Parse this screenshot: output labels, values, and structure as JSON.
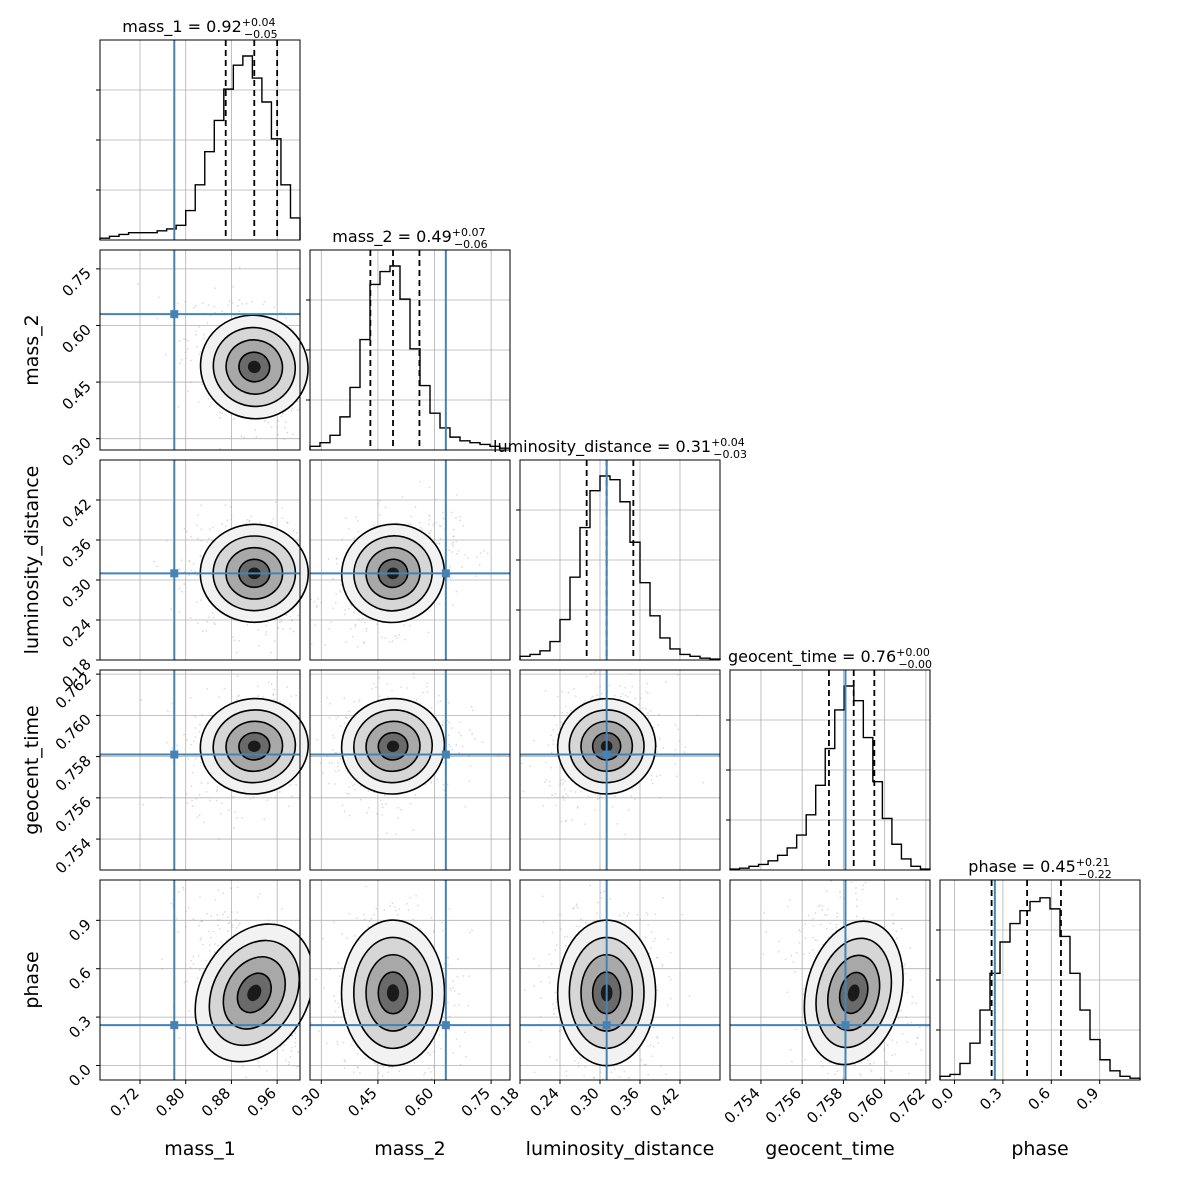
{
  "chart_data": {
    "type": "corner",
    "params": [
      "mass_1",
      "mass_2",
      "luminosity_distance",
      "geocent_time",
      "phase"
    ],
    "axis_labels": [
      "mass_1",
      "mass_2",
      "luminosity_distance",
      "geocent_time",
      "phase"
    ],
    "ranges": [
      [
        0.65,
        1.0
      ],
      [
        0.27,
        0.8
      ],
      [
        0.18,
        0.48
      ],
      [
        0.7525,
        0.7622
      ],
      [
        -0.09,
        1.15
      ]
    ],
    "ticks": [
      [
        0.72,
        0.8,
        0.88,
        0.96
      ],
      [
        0.3,
        0.45,
        0.6,
        0.75
      ],
      [
        0.18,
        0.24,
        0.3,
        0.36,
        0.42
      ],
      [
        0.754,
        0.756,
        0.758,
        0.76,
        0.762
      ],
      [
        0.0,
        0.3,
        0.6,
        0.9
      ]
    ],
    "tick_labels": [
      [
        "0.72",
        "0.80",
        "0.88",
        "0.96"
      ],
      [
        "0.30",
        "0.45",
        "0.60",
        "0.75"
      ],
      [
        "0.18",
        "0.24",
        "0.30",
        "0.36",
        "0.42"
      ],
      [
        "0.754",
        "0.756",
        "0.758",
        "0.760",
        "0.762"
      ],
      [
        "0.0",
        "0.3",
        "0.6",
        "0.9"
      ]
    ],
    "titles": [
      {
        "text": "mass_1 = 0.92",
        "plus": "+0.04",
        "minus": "−0.05"
      },
      {
        "text": "mass_2 = 0.49",
        "plus": "+0.07",
        "minus": "−0.06"
      },
      {
        "text": "luminosity_distance = 0.31",
        "plus": "+0.04",
        "minus": "−0.03"
      },
      {
        "text": "geocent_time = 0.76",
        "plus": "+0.00",
        "minus": "−0.00"
      },
      {
        "text": "phase = 0.45",
        "plus": "+0.21",
        "minus": "−0.22"
      }
    ],
    "medians": [
      0.92,
      0.49,
      0.31,
      0.7585,
      0.45
    ],
    "quantiles": [
      [
        0.87,
        0.96
      ],
      [
        0.43,
        0.56
      ],
      [
        0.28,
        0.35
      ],
      [
        0.7573,
        0.7595
      ],
      [
        0.23,
        0.66
      ]
    ],
    "truths": [
      0.78,
      0.63,
      0.31,
      0.7581,
      0.25
    ],
    "histograms": [
      [
        0.01,
        0.02,
        0.03,
        0.04,
        0.04,
        0.04,
        0.05,
        0.06,
        0.08,
        0.16,
        0.3,
        0.48,
        0.65,
        0.82,
        0.95,
        1.0,
        0.88,
        0.75,
        0.55,
        0.3,
        0.12
      ],
      [
        0.02,
        0.04,
        0.08,
        0.18,
        0.34,
        0.6,
        0.9,
        0.97,
        1.0,
        0.82,
        0.55,
        0.35,
        0.2,
        0.12,
        0.07,
        0.05,
        0.04,
        0.03,
        0.02,
        0.01
      ],
      [
        0.02,
        0.03,
        0.05,
        0.1,
        0.22,
        0.45,
        0.72,
        0.92,
        1.0,
        0.98,
        0.86,
        0.64,
        0.42,
        0.24,
        0.12,
        0.06,
        0.03,
        0.02,
        0.01,
        0.005
      ],
      [
        0.005,
        0.01,
        0.02,
        0.03,
        0.05,
        0.08,
        0.12,
        0.19,
        0.3,
        0.46,
        0.66,
        0.87,
        1.0,
        0.92,
        0.72,
        0.48,
        0.28,
        0.14,
        0.06,
        0.02,
        0.005
      ],
      [
        0.02,
        0.03,
        0.09,
        0.2,
        0.38,
        0.58,
        0.75,
        0.85,
        0.92,
        0.97,
        0.99,
        0.93,
        0.78,
        0.58,
        0.38,
        0.22,
        0.11,
        0.05,
        0.02,
        0.01
      ]
    ],
    "grid": true,
    "truth_color": "#4682b4",
    "line_color": "#000000",
    "scatter_color": "#9a9a9a"
  }
}
